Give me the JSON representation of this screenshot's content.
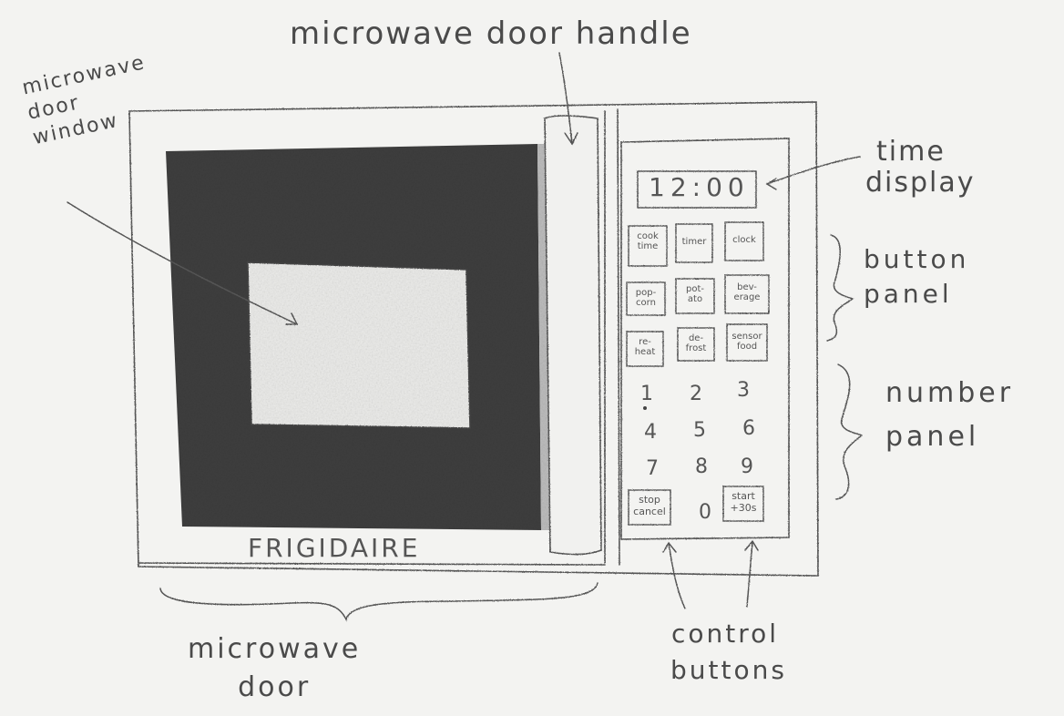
{
  "labels": {
    "door_handle": "microwave door handle",
    "door_window": [
      "microwave",
      "door",
      "window"
    ],
    "time_display": [
      "time",
      "display"
    ],
    "button_panel": [
      "button",
      "panel"
    ],
    "number_panel": [
      "number",
      "panel"
    ],
    "microwave_door": [
      "microwave",
      "door"
    ],
    "control_buttons": [
      "control",
      "buttons"
    ]
  },
  "brand": "FRIGIDAIRE",
  "display_time": "12:00",
  "function_buttons": [
    [
      "cook",
      "time"
    ],
    [
      "timer"
    ],
    [
      "clock"
    ],
    [
      "pop-",
      "corn"
    ],
    [
      "pot-",
      "ato"
    ],
    [
      "bev-",
      "erage"
    ],
    [
      "re-",
      "heat"
    ],
    [
      "de-",
      "frost"
    ],
    [
      "sensor",
      "food"
    ]
  ],
  "number_keys": [
    "1",
    "2",
    "3",
    "4",
    "5",
    "6",
    "7",
    "8",
    "9",
    "0"
  ],
  "control_buttons": {
    "stop": [
      "stop",
      "cancel"
    ],
    "start": [
      "start",
      "+30s"
    ]
  },
  "colors": {
    "paper": "#f3f3f1",
    "pencil": "#4a4a4a",
    "shading": "#3a3a3a"
  }
}
